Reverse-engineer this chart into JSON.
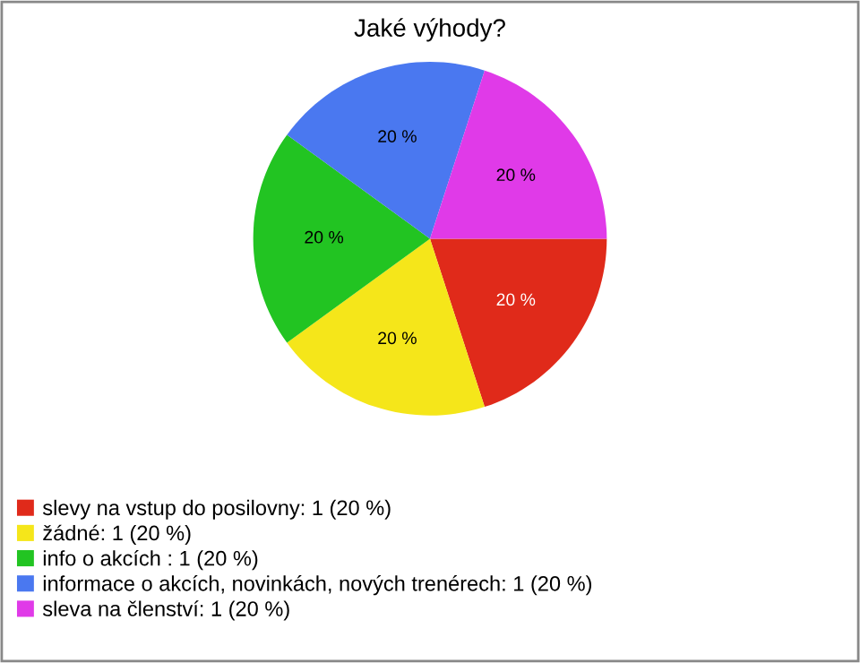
{
  "chart_data": {
    "type": "pie",
    "title": "Jaké výhody?",
    "categories": [
      "slevy na vstup do posilovny: 1 (20 %)",
      "žádné: 1 (20 %)",
      "info o akcích : 1 (20 %)",
      "informace o akcích, novinkách, nových trenérech: 1 (20 %)",
      "sleva na členství: 1 (20 %)"
    ],
    "values": [
      20,
      20,
      20,
      20,
      20
    ],
    "colors": [
      "#e02a1a",
      "#f5e61a",
      "#22c422",
      "#4a78f0",
      "#e03ae8"
    ],
    "value_labels": [
      "20 %",
      "20 %",
      "20 %",
      "20 %",
      "20 %"
    ],
    "legend": "bottom left"
  }
}
